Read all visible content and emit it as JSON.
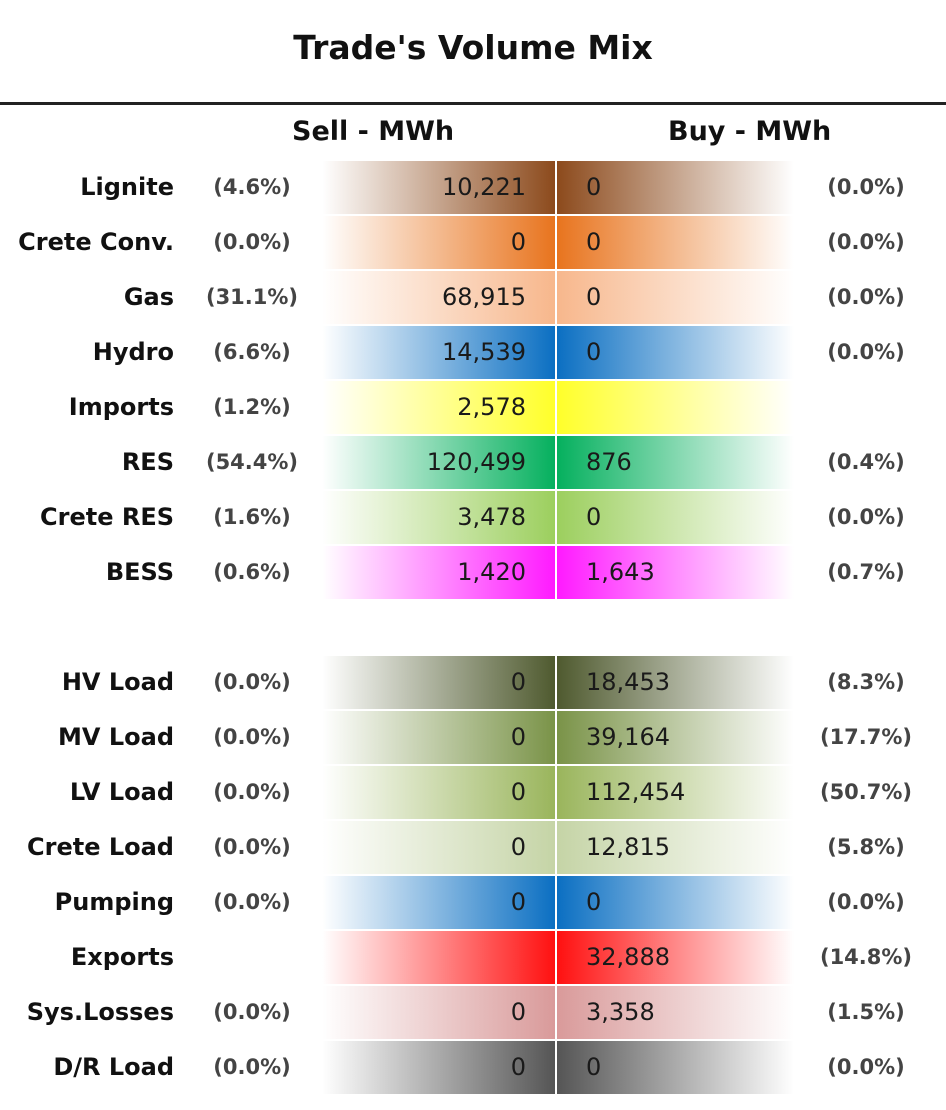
{
  "title": "Trade's Volume Mix",
  "chart_data": {
    "type": "table",
    "columns": {
      "sell": "Sell - MWh",
      "buy": "Buy - MWh"
    },
    "groups": [
      {
        "rows": [
          {
            "label": "Lignite",
            "sell": "10,221",
            "sell_pct": "(4.6%)",
            "buy": "0",
            "buy_pct": "(0.0%)",
            "color": "#8c4a1c"
          },
          {
            "label": "Crete Conv.",
            "sell": "0",
            "sell_pct": "(0.0%)",
            "buy": "0",
            "buy_pct": "(0.0%)",
            "color": "#e8741e"
          },
          {
            "label": "Gas",
            "sell": "68,915",
            "sell_pct": "(31.1%)",
            "buy": "0",
            "buy_pct": "(0.0%)",
            "color": "#f7b78c"
          },
          {
            "label": "Hydro",
            "sell": "14,539",
            "sell_pct": "(6.6%)",
            "buy": "0",
            "buy_pct": "(0.0%)",
            "color": "#0b6fc2"
          },
          {
            "label": "Imports",
            "sell": "2,578",
            "sell_pct": "(1.2%)",
            "buy": "",
            "buy_pct": "",
            "color": "#ffff2a"
          },
          {
            "label": "RES",
            "sell": "120,499",
            "sell_pct": "(54.4%)",
            "buy": "876",
            "buy_pct": "(0.4%)",
            "color": "#05b05e"
          },
          {
            "label": "Crete RES",
            "sell": "3,478",
            "sell_pct": "(1.6%)",
            "buy": "0",
            "buy_pct": "(0.0%)",
            "color": "#9ccf5e"
          },
          {
            "label": "BESS",
            "sell": "1,420",
            "sell_pct": "(0.6%)",
            "buy": "1,643",
            "buy_pct": "(0.7%)",
            "color": "#ff1aff"
          }
        ]
      },
      {
        "rows": [
          {
            "label": "HV Load",
            "sell": "0",
            "sell_pct": "(0.0%)",
            "buy": "18,453",
            "buy_pct": "(8.3%)",
            "color": "#4f5a2f"
          },
          {
            "label": "MV Load",
            "sell": "0",
            "sell_pct": "(0.0%)",
            "buy": "39,164",
            "buy_pct": "(17.7%)",
            "color": "#7a9348"
          },
          {
            "label": "LV Load",
            "sell": "0",
            "sell_pct": "(0.0%)",
            "buy": "112,454",
            "buy_pct": "(50.7%)",
            "color": "#9ab55c"
          },
          {
            "label": "Crete Load",
            "sell": "0",
            "sell_pct": "(0.0%)",
            "buy": "12,815",
            "buy_pct": "(5.8%)",
            "color": "#c5d4a6"
          },
          {
            "label": "Pumping",
            "sell": "0",
            "sell_pct": "(0.0%)",
            "buy": "0",
            "buy_pct": "(0.0%)",
            "color": "#0b6fc2"
          },
          {
            "label": "Exports",
            "sell": "",
            "sell_pct": "",
            "buy": "32,888",
            "buy_pct": "(14.8%)",
            "color": "#ff1010"
          },
          {
            "label": "Sys.Losses",
            "sell": "0",
            "sell_pct": "(0.0%)",
            "buy": "3,358",
            "buy_pct": "(1.5%)",
            "color": "#d99a9a"
          },
          {
            "label": "D/R Load",
            "sell": "0",
            "sell_pct": "(0.0%)",
            "buy": "0",
            "buy_pct": "(0.0%)",
            "color": "#555555"
          }
        ]
      }
    ]
  }
}
